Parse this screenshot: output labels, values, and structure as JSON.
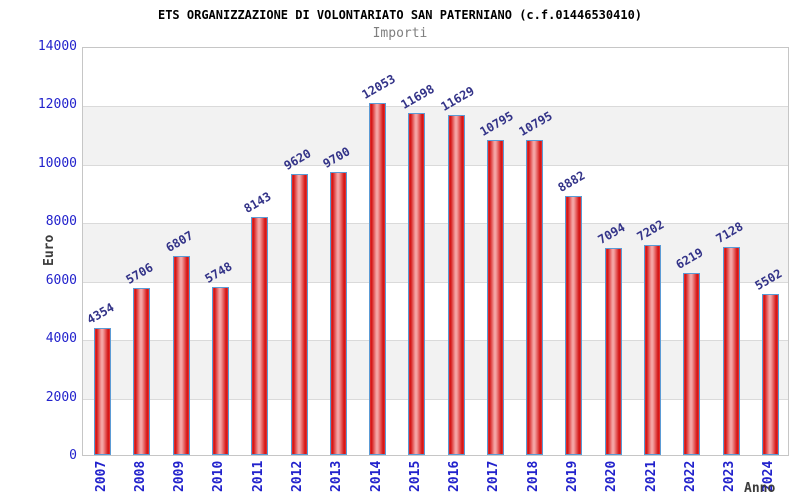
{
  "header": {
    "title": "ETS ORGANIZZAZIONE DI VOLONTARIATO SAN PATERNIANO (c.f.01446530410)",
    "subtitle": "Importi"
  },
  "chart_data": {
    "type": "bar",
    "title": "ETS ORGANIZZAZIONE DI VOLONTARIATO SAN PATERNIANO (c.f.01446530410)",
    "subtitle": "Importi",
    "xlabel": "Anno",
    "ylabel": "Euro",
    "categories": [
      "2007",
      "2008",
      "2009",
      "2010",
      "2011",
      "2012",
      "2013",
      "2014",
      "2015",
      "2016",
      "2017",
      "2018",
      "2019",
      "2020",
      "2021",
      "2022",
      "2023",
      "2024"
    ],
    "values": [
      4354,
      5706,
      6807,
      5748,
      8143,
      9620,
      9700,
      12053,
      11698,
      11629,
      10795,
      10795,
      8882,
      7094,
      7202,
      6219,
      7128,
      5502
    ],
    "ylim": [
      0,
      14000
    ],
    "yticks": [
      0,
      2000,
      4000,
      6000,
      8000,
      10000,
      12000,
      14000
    ],
    "grid": true,
    "legend": false,
    "band_striping": "alternating horizontal bands every 2000",
    "colors": {
      "bar_dark": "#d31111",
      "bar_edge": "#e43535",
      "bar_light": "#f4a3a3",
      "bar_border": "#5b9bd5",
      "band_gray": "#f2f2f2",
      "grid_line": "#dadada",
      "plot_border": "#c6c6c6",
      "tick_text": "#2222cc",
      "value_label_text": "#333388",
      "axis_title_text": "#3c3c3c",
      "subtitle_text": "#7f7f7f",
      "title_text": "#000000"
    }
  }
}
